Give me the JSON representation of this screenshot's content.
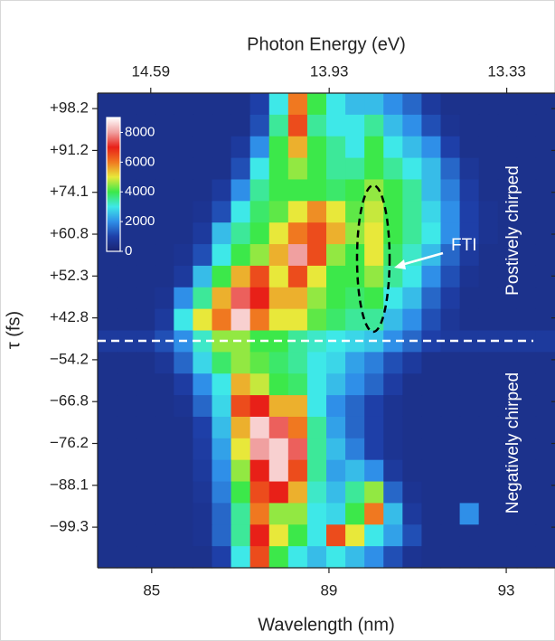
{
  "chart_data": {
    "type": "heatmap",
    "x_label": "Wavelength (nm)",
    "x2_label": "Photon Energy (eV)",
    "y_label": "τ (fs)",
    "xlim": [
      83.78,
      94.1
    ],
    "xticks": [
      85,
      89,
      93
    ],
    "x2ticks": [
      14.59,
      13.93,
      13.33
    ],
    "ylim": [
      -0.37,
      10.97
    ],
    "yticks": [
      {
        "value": 0,
        "label": "+98.2"
      },
      {
        "value": 1,
        "label": "+91.2"
      },
      {
        "value": 2,
        "label": "+74.1"
      },
      {
        "value": 3,
        "label": "+60.8"
      },
      {
        "value": 4,
        "label": "+52.3"
      },
      {
        "value": 5,
        "label": "+42.8"
      },
      {
        "value": 6,
        "label": "−54.2"
      },
      {
        "value": 7,
        "label": "−66.8"
      },
      {
        "value": 8,
        "label": "−76.2"
      },
      {
        "value": 9,
        "label": "−88.1"
      },
      {
        "value": 10,
        "label": "−99.3"
      }
    ],
    "clim": [
      0,
      9000
    ],
    "colorbar_ticks": [
      0,
      2000,
      4000,
      6000,
      8000
    ],
    "colormap": [
      "#1a2470",
      "#1e3fa8",
      "#2f8fe8",
      "#3ee8e8",
      "#3ce84a",
      "#e8e83a",
      "#f07820",
      "#e82018",
      "#f0a0a0",
      "#ffffff"
    ],
    "annotations": [
      "FTI",
      "Postively chirped",
      "Negatively chirped"
    ],
    "z": [
      [
        500,
        500,
        500,
        500,
        500,
        500,
        500,
        500,
        1000,
        3000,
        6000,
        4000,
        3000,
        2500,
        2500,
        2000,
        1500,
        800,
        500,
        500,
        500,
        500,
        500,
        500
      ],
      [
        500,
        500,
        500,
        500,
        500,
        500,
        500,
        500,
        1200,
        3500,
        6500,
        3500,
        3000,
        3000,
        3500,
        2500,
        2000,
        1200,
        600,
        500,
        500,
        500,
        500,
        500
      ],
      [
        500,
        500,
        500,
        500,
        500,
        500,
        500,
        800,
        2000,
        4000,
        5500,
        4000,
        3500,
        3000,
        4000,
        3000,
        2500,
        2000,
        1000,
        500,
        500,
        500,
        500,
        500
      ],
      [
        500,
        500,
        500,
        500,
        500,
        500,
        500,
        1200,
        3000,
        4000,
        4500,
        4000,
        3500,
        3500,
        4000,
        3500,
        3000,
        2500,
        1500,
        700,
        500,
        500,
        500,
        500
      ],
      [
        500,
        500,
        500,
        500,
        500,
        500,
        800,
        2000,
        3500,
        4000,
        4000,
        4000,
        3800,
        4000,
        4500,
        4000,
        3500,
        2500,
        1800,
        900,
        500,
        500,
        500,
        500
      ],
      [
        500,
        500,
        500,
        500,
        500,
        600,
        1200,
        3000,
        3800,
        4200,
        5000,
        5800,
        5000,
        4200,
        4800,
        4000,
        3500,
        2800,
        2000,
        1000,
        600,
        500,
        500,
        500
      ],
      [
        500,
        500,
        500,
        500,
        500,
        800,
        2500,
        3500,
        4000,
        5000,
        6000,
        6500,
        5500,
        4500,
        5000,
        4000,
        3500,
        3000,
        2000,
        1000,
        600,
        500,
        500,
        500
      ],
      [
        500,
        500,
        500,
        500,
        600,
        1200,
        3000,
        4000,
        4500,
        5500,
        8000,
        6500,
        4500,
        4000,
        5000,
        3800,
        3200,
        2500,
        1500,
        800,
        500,
        500,
        500,
        500
      ],
      [
        500,
        500,
        500,
        500,
        800,
        2500,
        4000,
        5500,
        6500,
        5000,
        6500,
        5000,
        4000,
        4000,
        4500,
        3500,
        3000,
        2000,
        1200,
        600,
        500,
        500,
        500,
        500
      ],
      [
        500,
        500,
        500,
        600,
        2000,
        3500,
        5500,
        7500,
        7000,
        5500,
        5500,
        4500,
        4000,
        3800,
        4000,
        3000,
        2500,
        1500,
        900,
        500,
        500,
        500,
        500,
        500
      ],
      [
        500,
        500,
        500,
        800,
        3000,
        5000,
        6000,
        8500,
        6000,
        5000,
        5000,
        4200,
        3800,
        3500,
        3500,
        2500,
        2000,
        1200,
        700,
        500,
        500,
        500,
        500,
        500
      ],
      [
        800,
        800,
        800,
        1200,
        2000,
        3200,
        4500,
        4500,
        4000,
        4000,
        3500,
        3200,
        3000,
        2800,
        2600,
        2000,
        1500,
        1000,
        800,
        800,
        800,
        800,
        800,
        800
      ],
      [
        500,
        500,
        500,
        700,
        1500,
        2800,
        3800,
        4500,
        4200,
        3800,
        3500,
        3000,
        2800,
        2200,
        1800,
        1200,
        800,
        500,
        500,
        500,
        500,
        500,
        500,
        500
      ],
      [
        500,
        500,
        500,
        500,
        900,
        2000,
        3000,
        5500,
        4800,
        4000,
        3800,
        3000,
        2500,
        2000,
        1500,
        900,
        500,
        500,
        500,
        500,
        500,
        500,
        500,
        500
      ],
      [
        500,
        500,
        500,
        500,
        600,
        1500,
        2800,
        6500,
        7000,
        5500,
        5500,
        3000,
        2000,
        1500,
        1000,
        600,
        500,
        500,
        500,
        500,
        500,
        500,
        500,
        500
      ],
      [
        500,
        500,
        500,
        500,
        500,
        1000,
        2500,
        5500,
        8500,
        7500,
        6000,
        3500,
        2200,
        1500,
        1000,
        600,
        500,
        500,
        500,
        500,
        500,
        500,
        500,
        500
      ],
      [
        500,
        500,
        500,
        500,
        500,
        900,
        2200,
        5000,
        8000,
        8500,
        7500,
        3500,
        2500,
        1800,
        1000,
        600,
        500,
        500,
        500,
        500,
        500,
        500,
        500,
        500
      ],
      [
        500,
        500,
        500,
        500,
        500,
        800,
        2000,
        4500,
        7000,
        8500,
        6500,
        3500,
        2200,
        2500,
        2000,
        800,
        500,
        500,
        500,
        500,
        500,
        500,
        500,
        500
      ],
      [
        500,
        500,
        500,
        500,
        500,
        700,
        1800,
        4000,
        6500,
        7000,
        5500,
        3200,
        2500,
        3500,
        4500,
        1500,
        600,
        500,
        500,
        500,
        500,
        500,
        500,
        500
      ],
      [
        500,
        500,
        500,
        500,
        500,
        600,
        1500,
        3500,
        6000,
        4500,
        4500,
        3000,
        2800,
        4000,
        6000,
        2500,
        800,
        500,
        500,
        2000,
        500,
        500,
        500,
        500
      ],
      [
        500,
        500,
        500,
        500,
        500,
        600,
        1500,
        3500,
        7000,
        5000,
        4000,
        3000,
        6500,
        5000,
        3000,
        2200,
        1200,
        500,
        500,
        500,
        500,
        500,
        500,
        500
      ],
      [
        500,
        500,
        500,
        500,
        500,
        500,
        1000,
        3000,
        6500,
        4000,
        3000,
        2500,
        3000,
        2500,
        2000,
        1200,
        600,
        500,
        500,
        500,
        500,
        500,
        500,
        500
      ]
    ]
  }
}
